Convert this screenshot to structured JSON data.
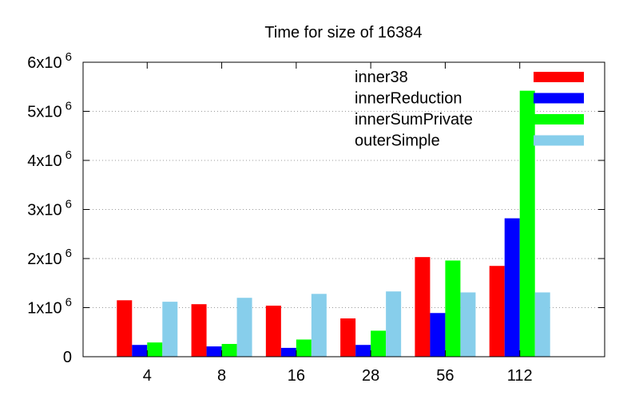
{
  "chart_data": {
    "type": "bar",
    "title": "Time for size of 16384",
    "xlabel": "",
    "ylabel": "",
    "categories": [
      "4",
      "8",
      "16",
      "28",
      "56",
      "112"
    ],
    "ylim": [
      0,
      6000000
    ],
    "yticks": [
      {
        "value": 0,
        "base": "0",
        "exp": ""
      },
      {
        "value": 1000000,
        "base": "1x10",
        "exp": "6"
      },
      {
        "value": 2000000,
        "base": "2x10",
        "exp": "6"
      },
      {
        "value": 3000000,
        "base": "3x10",
        "exp": "6"
      },
      {
        "value": 4000000,
        "base": "4x10",
        "exp": "6"
      },
      {
        "value": 5000000,
        "base": "5x10",
        "exp": "6"
      },
      {
        "value": 6000000,
        "base": "6x10",
        "exp": "6"
      }
    ],
    "grid": "horizontal-dotted",
    "legend_position": "top-right",
    "series": [
      {
        "name": "inner38",
        "color": "#ff0000",
        "values": [
          1150000,
          1070000,
          1040000,
          780000,
          2030000,
          1850000
        ]
      },
      {
        "name": "innerReduction",
        "color": "#0000ff",
        "values": [
          240000,
          210000,
          180000,
          240000,
          890000,
          2820000
        ]
      },
      {
        "name": "innerSumPrivate",
        "color": "#00ff00",
        "values": [
          290000,
          260000,
          350000,
          530000,
          1960000,
          5420000
        ]
      },
      {
        "name": "outerSimple",
        "color": "#87ceeb",
        "values": [
          1120000,
          1200000,
          1280000,
          1330000,
          1310000,
          1310000
        ]
      }
    ]
  }
}
